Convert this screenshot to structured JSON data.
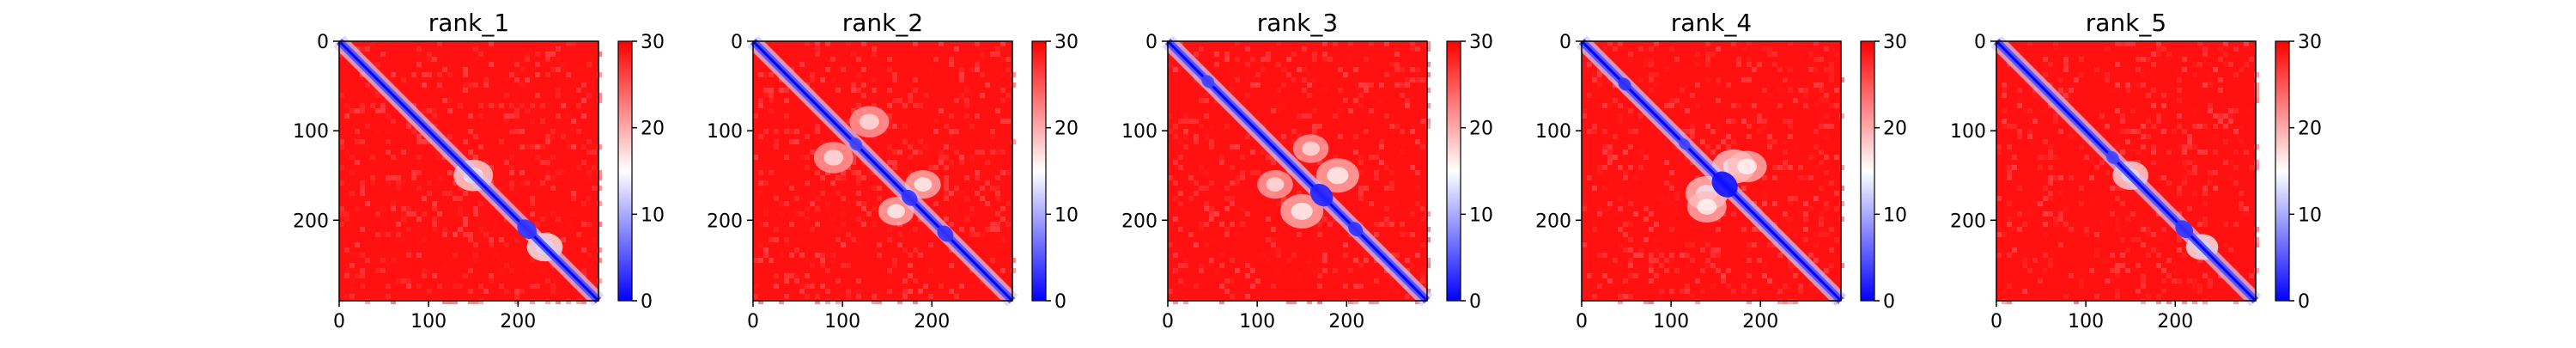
{
  "chart_data": [
    {
      "type": "heatmap",
      "title": "rank_1",
      "x_ticks": [
        0,
        100,
        200
      ],
      "y_ticks": [
        0,
        100,
        200
      ],
      "xlim": [
        0,
        290
      ],
      "ylim": [
        290,
        0
      ],
      "colorbar": {
        "ticks": [
          0,
          10,
          20,
          30
        ],
        "range": [
          0,
          30
        ],
        "colormap": "bwr"
      },
      "features": [
        {
          "x": 210,
          "y": 210,
          "radius": 12,
          "value": 3
        },
        {
          "x": 150,
          "y": 150,
          "radius": 22,
          "value": 15
        },
        {
          "x": 230,
          "y": 230,
          "radius": 20,
          "value": 14
        }
      ]
    },
    {
      "type": "heatmap",
      "title": "rank_2",
      "x_ticks": [
        0,
        100,
        200
      ],
      "y_ticks": [
        0,
        100,
        200
      ],
      "xlim": [
        0,
        290
      ],
      "ylim": [
        290,
        0
      ],
      "colorbar": {
        "ticks": [
          0,
          10,
          20,
          30
        ],
        "range": [
          0,
          30
        ],
        "colormap": "bwr"
      },
      "features": [
        {
          "x": 175,
          "y": 175,
          "radius": 10,
          "value": 3
        },
        {
          "x": 215,
          "y": 215,
          "radius": 10,
          "value": 3
        },
        {
          "x": 115,
          "y": 115,
          "radius": 8,
          "value": 4
        },
        {
          "x": 130,
          "y": 90,
          "radius": 22,
          "value": 16
        },
        {
          "x": 190,
          "y": 160,
          "radius": 20,
          "value": 15
        }
      ]
    },
    {
      "type": "heatmap",
      "title": "rank_3",
      "x_ticks": [
        0,
        100,
        200
      ],
      "y_ticks": [
        0,
        100,
        200
      ],
      "xlim": [
        0,
        290
      ],
      "ylim": [
        290,
        0
      ],
      "colorbar": {
        "ticks": [
          0,
          10,
          20,
          30
        ],
        "range": [
          0,
          30
        ],
        "colormap": "bwr"
      },
      "features": [
        {
          "x": 172,
          "y": 172,
          "radius": 14,
          "value": 2
        },
        {
          "x": 210,
          "y": 210,
          "radius": 9,
          "value": 3
        },
        {
          "x": 45,
          "y": 45,
          "radius": 8,
          "value": 4
        },
        {
          "x": 190,
          "y": 150,
          "radius": 24,
          "value": 15
        },
        {
          "x": 120,
          "y": 160,
          "radius": 20,
          "value": 16
        }
      ]
    },
    {
      "type": "heatmap",
      "title": "rank_4",
      "x_ticks": [
        0,
        100,
        200
      ],
      "y_ticks": [
        0,
        100,
        200
      ],
      "xlim": [
        0,
        290
      ],
      "ylim": [
        290,
        0
      ],
      "colorbar": {
        "ticks": [
          0,
          10,
          20,
          30
        ],
        "range": [
          0,
          30
        ],
        "colormap": "bwr"
      },
      "features": [
        {
          "x": 160,
          "y": 160,
          "radius": 16,
          "value": 1
        },
        {
          "x": 48,
          "y": 48,
          "radius": 8,
          "value": 3
        },
        {
          "x": 115,
          "y": 115,
          "radius": 7,
          "value": 4
        },
        {
          "x": 170,
          "y": 140,
          "radius": 24,
          "value": 14
        },
        {
          "x": 140,
          "y": 185,
          "radius": 22,
          "value": 15
        }
      ]
    },
    {
      "type": "heatmap",
      "title": "rank_5",
      "x_ticks": [
        0,
        100,
        200
      ],
      "y_ticks": [
        0,
        100,
        200
      ],
      "xlim": [
        0,
        290
      ],
      "ylim": [
        290,
        0
      ],
      "colorbar": {
        "ticks": [
          0,
          10,
          20,
          30
        ],
        "range": [
          0,
          30
        ],
        "colormap": "bwr"
      },
      "features": [
        {
          "x": 210,
          "y": 210,
          "radius": 11,
          "value": 3
        },
        {
          "x": 130,
          "y": 130,
          "radius": 8,
          "value": 4
        },
        {
          "x": 150,
          "y": 150,
          "radius": 20,
          "value": 15
        },
        {
          "x": 230,
          "y": 230,
          "radius": 18,
          "value": 14
        }
      ]
    }
  ]
}
